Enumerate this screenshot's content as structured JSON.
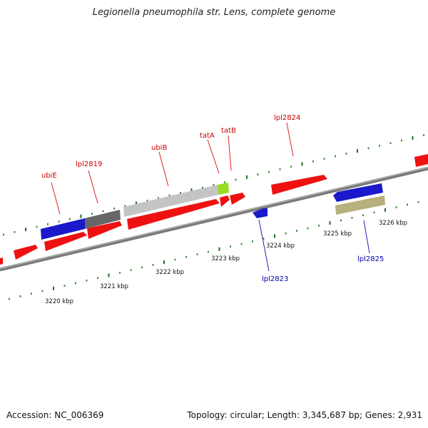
{
  "title": "Legionella pneumophila str. Lens, complete genome",
  "footer": {
    "accession": "Accession: NC_006369",
    "summary": "Topology: circular; Length: 3,345,687 bp; Genes: 2,931"
  },
  "colors": {
    "backbone": "#8a8a8a",
    "tick_major": "#2e7d2e",
    "label_forward": "#cc0000",
    "label_reverse": "#0000aa",
    "red_gene": "#ee1111",
    "blue_gene": "#1a1acc",
    "gray_gene": "#666666",
    "light_gray_gene": "#c0c0c0",
    "lime_gene": "#99dd22",
    "khaki_gene": "#b8b07a"
  },
  "scale_labels": [
    "3220 kbp",
    "3221 kbp",
    "3222 kbp",
    "3223 kbp",
    "3224 kbp",
    "3225 kbp",
    "3226 kbp"
  ],
  "gene_labels": {
    "forward": [
      "ubiE",
      "lpl2819",
      "ubiB",
      "tatA",
      "tatB",
      "lpl2824"
    ],
    "reverse": [
      "lpl2823",
      "lpl2825"
    ]
  }
}
